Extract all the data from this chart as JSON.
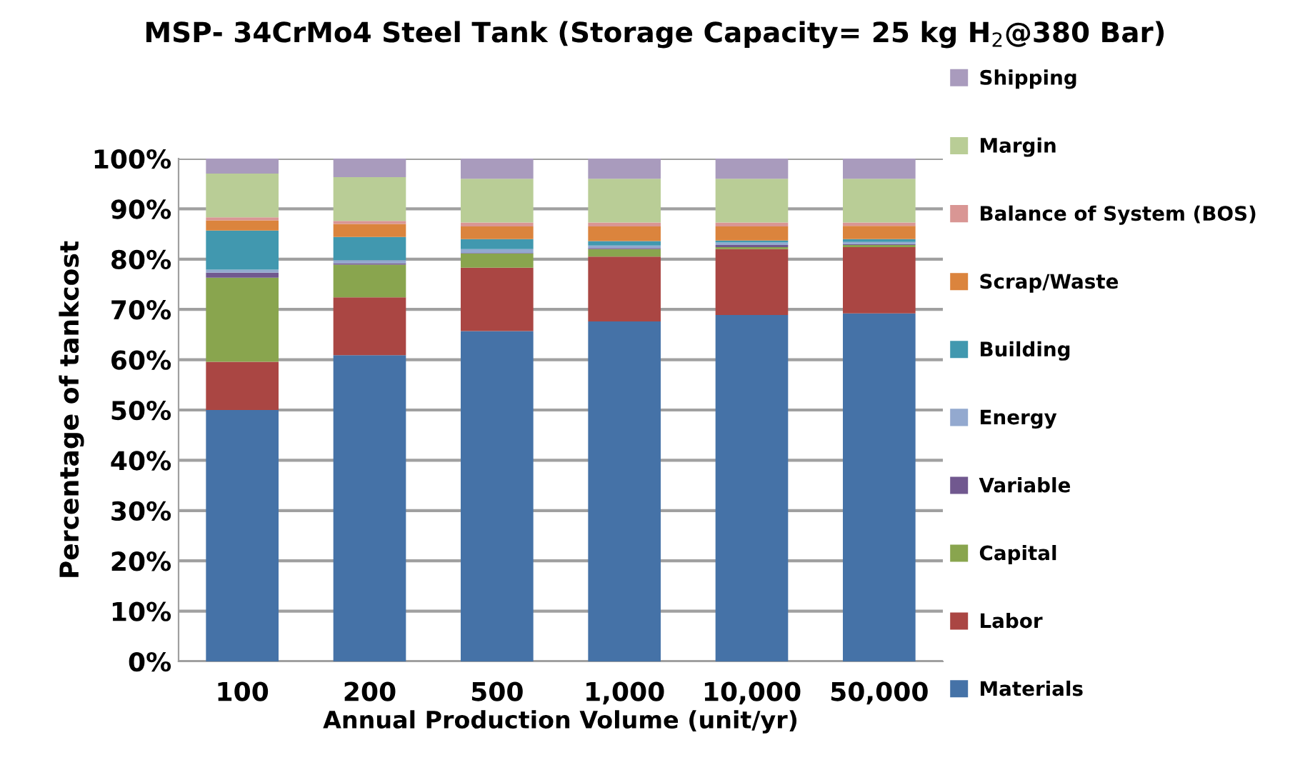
{
  "chart_data": {
    "type": "bar",
    "stacked": true,
    "title": "MSP- 34CrMo4 Steel Tank (Storage Capacity= 25 kg H$_{2}$@380 Bar)",
    "xlabel": "Annual Production Volume (unit/yr)",
    "ylabel": "Percentage of tankcost",
    "categories": [
      "100",
      "200",
      "500",
      "1,000",
      "10,000",
      "50,000"
    ],
    "series": [
      {
        "name": "Materials",
        "color": "#4572a7",
        "values": [
          50,
          60.9,
          65.7,
          67.6,
          68.9,
          69.2
        ]
      },
      {
        "name": "Labor",
        "color": "#aa4643",
        "values": [
          9.6,
          11.5,
          12.6,
          12.9,
          13.1,
          13.2
        ]
      },
      {
        "name": "Capital",
        "color": "#89a54e",
        "values": [
          16.7,
          6.5,
          2.8,
          1.5,
          0.4,
          0.4
        ]
      },
      {
        "name": "Variable",
        "color": "#71588f",
        "values": [
          1.0,
          0.3,
          0.1,
          0.2,
          0.4,
          0.2
        ]
      },
      {
        "name": "Energy",
        "color": "#93a9cf",
        "values": [
          0.6,
          0.6,
          0.8,
          0.5,
          0.5,
          0.4
        ]
      },
      {
        "name": "Building",
        "color": "#4198af",
        "values": [
          7.8,
          4.6,
          2.0,
          0.9,
          0.4,
          0.6
        ]
      },
      {
        "name": "Scrap/Waste",
        "color": "#db843d",
        "values": [
          2.0,
          2.6,
          2.5,
          2.9,
          2.8,
          2.6
        ]
      },
      {
        "name": "Balance of System (BOS)",
        "color": "#d99694",
        "values": [
          0.6,
          0.6,
          0.8,
          0.8,
          0.8,
          0.7
        ]
      },
      {
        "name": "Margin",
        "color": "#b9cd96",
        "values": [
          8.7,
          8.7,
          8.7,
          8.7,
          8.7,
          8.7
        ]
      },
      {
        "name": "Shipping",
        "color": "#a99bbd",
        "values": [
          3.0,
          3.7,
          4.0,
          4.0,
          4.0,
          4.0
        ]
      }
    ],
    "ylim": [
      0,
      100
    ],
    "yticks": [
      {
        "value": 0,
        "label": "0%"
      },
      {
        "value": 10,
        "label": "10%"
      },
      {
        "value": 20,
        "label": "20%"
      },
      {
        "value": 30,
        "label": "30%"
      },
      {
        "value": 40,
        "label": "40%"
      },
      {
        "value": 50,
        "label": "50%"
      },
      {
        "value": 60,
        "label": "60%"
      },
      {
        "value": 70,
        "label": "70%"
      },
      {
        "value": 80,
        "label": "80%"
      },
      {
        "value": 90,
        "label": "90%"
      },
      {
        "value": 100,
        "label": "100%"
      }
    ],
    "grid": "y",
    "legend": "right"
  }
}
